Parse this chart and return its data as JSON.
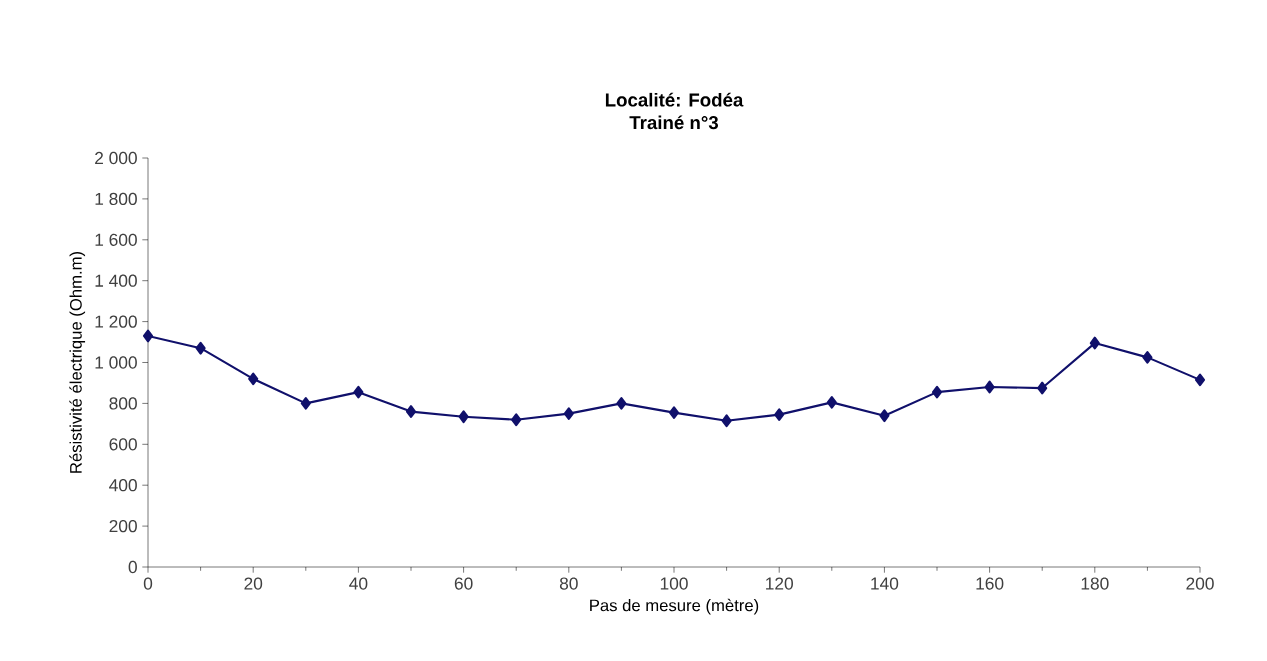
{
  "chart_data": {
    "type": "line",
    "title": "Localité: Fodéa",
    "subtitle": "Trainé n°3",
    "xlabel": "Pas de mesure (mètre)",
    "ylabel": "Résistivité électrique (Ohm.m)",
    "x": [
      0,
      10,
      20,
      30,
      40,
      50,
      60,
      70,
      80,
      90,
      100,
      110,
      120,
      130,
      140,
      150,
      160,
      170,
      180,
      190,
      200
    ],
    "series": [
      {
        "color": "#10106b",
        "values": [
          1130,
          1070,
          920,
          800,
          855,
          760,
          735,
          720,
          750,
          800,
          755,
          715,
          745,
          805,
          740,
          855,
          880,
          875,
          1095,
          1025,
          915
        ]
      }
    ],
    "marker": "diamond",
    "line_style": "solid",
    "grid": false,
    "xlim": [
      0,
      200
    ],
    "xticks": [
      0,
      20,
      40,
      60,
      80,
      100,
      120,
      140,
      160,
      180,
      200
    ],
    "ylim": [
      0,
      2000
    ],
    "yticks": [
      0,
      200,
      400,
      600,
      800,
      {
        "value": 1000,
        "label": "1 000"
      },
      {
        "value": 1200,
        "label": "1 200"
      },
      {
        "value": 1400,
        "label": "1 400"
      },
      {
        "value": 1600,
        "label": "1 600"
      },
      {
        "value": 1800,
        "label": "1 800"
      },
      {
        "value": 2000,
        "label": "2 000"
      }
    ]
  }
}
